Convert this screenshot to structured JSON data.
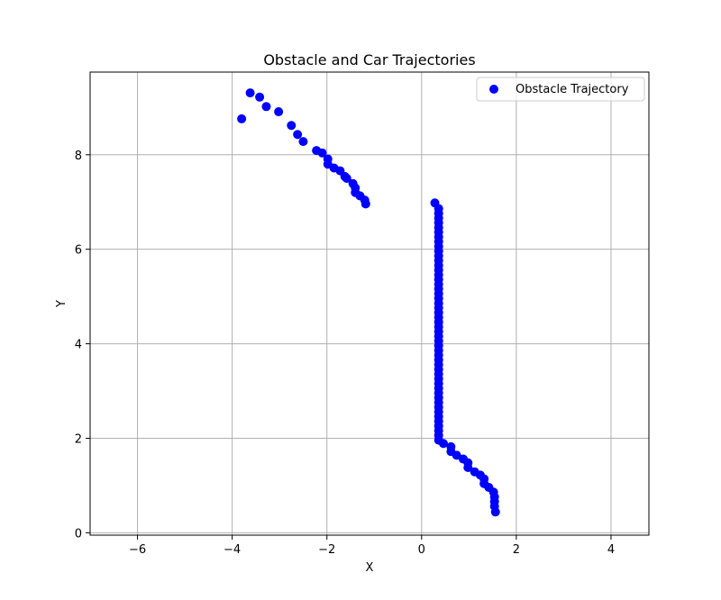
{
  "chart_data": {
    "type": "scatter",
    "title": "Obstacle and Car Trajectories",
    "xlabel": "X",
    "ylabel": "Y",
    "xlim": [
      -7.0,
      4.8
    ],
    "ylim": [
      -0.05,
      9.75
    ],
    "xticks": [
      -6,
      -4,
      -2,
      0,
      2,
      4
    ],
    "yticks": [
      0,
      2,
      4,
      6,
      8
    ],
    "xtick_labels": [
      "−6",
      "−4",
      "−2",
      "0",
      "2",
      "4"
    ],
    "ytick_labels": [
      "0",
      "2",
      "4",
      "6",
      "8"
    ],
    "grid": true,
    "legend_position": "top-right",
    "series": [
      {
        "name": "Obstacle Trajectory",
        "color": "#0000ff",
        "points": [
          [
            -3.8,
            8.76
          ],
          [
            -3.62,
            9.31
          ],
          [
            -3.42,
            9.22
          ],
          [
            -3.28,
            9.02
          ],
          [
            -3.02,
            8.91
          ],
          [
            -2.75,
            8.62
          ],
          [
            -2.62,
            8.43
          ],
          [
            -2.5,
            8.28
          ],
          [
            -2.22,
            8.09
          ],
          [
            -2.1,
            8.04
          ],
          [
            -1.98,
            7.91
          ],
          [
            -1.98,
            7.8
          ],
          [
            -1.85,
            7.72
          ],
          [
            -1.72,
            7.66
          ],
          [
            -1.62,
            7.54
          ],
          [
            -1.58,
            7.5
          ],
          [
            -1.45,
            7.39
          ],
          [
            -1.4,
            7.3
          ],
          [
            -1.4,
            7.2
          ],
          [
            -1.3,
            7.13
          ],
          [
            -1.2,
            7.04
          ],
          [
            -1.18,
            6.96
          ],
          [
            0.28,
            6.98
          ],
          [
            0.36,
            6.86
          ],
          [
            0.36,
            6.76
          ],
          [
            0.36,
            6.66
          ],
          [
            0.36,
            6.56
          ],
          [
            0.36,
            6.46
          ],
          [
            0.36,
            6.36
          ],
          [
            0.36,
            6.26
          ],
          [
            0.36,
            6.16
          ],
          [
            0.36,
            6.06
          ],
          [
            0.36,
            5.96
          ],
          [
            0.36,
            5.86
          ],
          [
            0.36,
            5.76
          ],
          [
            0.36,
            5.66
          ],
          [
            0.36,
            5.56
          ],
          [
            0.36,
            5.46
          ],
          [
            0.36,
            5.36
          ],
          [
            0.36,
            5.26
          ],
          [
            0.36,
            5.16
          ],
          [
            0.36,
            5.06
          ],
          [
            0.36,
            4.96
          ],
          [
            0.36,
            4.86
          ],
          [
            0.36,
            4.76
          ],
          [
            0.36,
            4.66
          ],
          [
            0.36,
            4.56
          ],
          [
            0.36,
            4.46
          ],
          [
            0.36,
            4.36
          ],
          [
            0.36,
            4.26
          ],
          [
            0.36,
            4.16
          ],
          [
            0.36,
            4.06
          ],
          [
            0.36,
            3.96
          ],
          [
            0.36,
            3.86
          ],
          [
            0.36,
            3.76
          ],
          [
            0.36,
            3.66
          ],
          [
            0.36,
            3.56
          ],
          [
            0.36,
            3.46
          ],
          [
            0.36,
            3.36
          ],
          [
            0.36,
            3.26
          ],
          [
            0.36,
            3.16
          ],
          [
            0.36,
            3.06
          ],
          [
            0.36,
            2.96
          ],
          [
            0.36,
            2.86
          ],
          [
            0.36,
            2.76
          ],
          [
            0.36,
            2.66
          ],
          [
            0.36,
            2.56
          ],
          [
            0.36,
            2.46
          ],
          [
            0.36,
            2.36
          ],
          [
            0.36,
            2.26
          ],
          [
            0.36,
            2.16
          ],
          [
            0.36,
            2.06
          ],
          [
            0.36,
            1.96
          ],
          [
            0.46,
            1.89
          ],
          [
            0.62,
            1.82
          ],
          [
            0.62,
            1.72
          ],
          [
            0.74,
            1.64
          ],
          [
            0.88,
            1.56
          ],
          [
            0.98,
            1.48
          ],
          [
            0.98,
            1.38
          ],
          [
            1.12,
            1.29
          ],
          [
            1.24,
            1.22
          ],
          [
            1.32,
            1.14
          ],
          [
            1.32,
            1.04
          ],
          [
            1.42,
            0.96
          ],
          [
            1.52,
            0.86
          ],
          [
            1.54,
            0.76
          ],
          [
            1.54,
            0.66
          ],
          [
            1.54,
            0.56
          ],
          [
            1.56,
            0.44
          ]
        ]
      }
    ]
  }
}
